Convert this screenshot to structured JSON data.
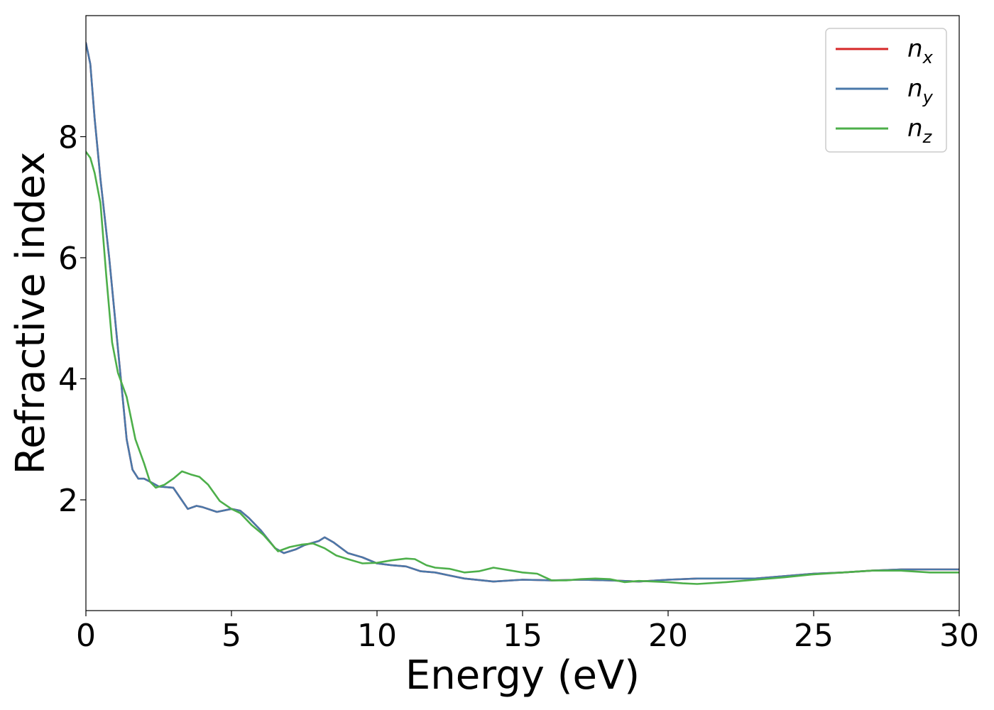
{
  "chart_data": {
    "type": "line",
    "title": "",
    "xlabel": "Energy (eV)",
    "ylabel": "Refractive index",
    "xlim": [
      0,
      30
    ],
    "ylim": [
      0.17,
      10.0
    ],
    "xticks": [
      0,
      5,
      10,
      15,
      20,
      25,
      30
    ],
    "yticks": [
      2,
      4,
      6,
      8
    ],
    "grid": false,
    "legend_position": "top-right",
    "series": [
      {
        "name": "n_x",
        "label_main": "n",
        "label_sub": "x",
        "color": "#d62728",
        "x": [
          0,
          0.15,
          0.3,
          0.5,
          0.8,
          1.0,
          1.2,
          1.4,
          1.6,
          1.8,
          2.0,
          2.2,
          2.5,
          3.0,
          3.5,
          3.8,
          4.0,
          4.5,
          5.0,
          5.3,
          5.6,
          6.0,
          6.5,
          6.8,
          7.2,
          7.5,
          8.0,
          8.2,
          8.5,
          9.0,
          9.5,
          10.0,
          10.5,
          11.0,
          11.5,
          12.0,
          12.5,
          13.0,
          14.0,
          15.0,
          16.0,
          17.0,
          18.0,
          19.0,
          20.0,
          21.0,
          22.0,
          23.0,
          24.0,
          25.0,
          26.0,
          27.0,
          28.0,
          29.0,
          30.0
        ],
        "y": [
          9.55,
          9.2,
          8.3,
          7.3,
          6.0,
          5.0,
          4.0,
          3.0,
          2.5,
          2.35,
          2.35,
          2.3,
          2.22,
          2.2,
          1.85,
          1.9,
          1.88,
          1.8,
          1.85,
          1.82,
          1.7,
          1.5,
          1.2,
          1.12,
          1.18,
          1.25,
          1.32,
          1.38,
          1.3,
          1.12,
          1.05,
          0.95,
          0.92,
          0.9,
          0.82,
          0.8,
          0.75,
          0.7,
          0.65,
          0.68,
          0.67,
          0.68,
          0.67,
          0.65,
          0.68,
          0.7,
          0.7,
          0.7,
          0.74,
          0.78,
          0.8,
          0.83,
          0.85,
          0.85,
          0.85
        ]
      },
      {
        "name": "n_y",
        "label_main": "n",
        "label_sub": "y",
        "color": "#4a78a9",
        "x": [
          0,
          0.15,
          0.3,
          0.5,
          0.8,
          1.0,
          1.2,
          1.4,
          1.6,
          1.8,
          2.0,
          2.2,
          2.5,
          3.0,
          3.5,
          3.8,
          4.0,
          4.5,
          5.0,
          5.3,
          5.6,
          6.0,
          6.5,
          6.8,
          7.2,
          7.5,
          8.0,
          8.2,
          8.5,
          9.0,
          9.5,
          10.0,
          10.5,
          11.0,
          11.5,
          12.0,
          12.5,
          13.0,
          14.0,
          15.0,
          16.0,
          17.0,
          18.0,
          19.0,
          20.0,
          21.0,
          22.0,
          23.0,
          24.0,
          25.0,
          26.0,
          27.0,
          28.0,
          29.0,
          30.0
        ],
        "y": [
          9.55,
          9.2,
          8.3,
          7.3,
          6.0,
          5.0,
          4.0,
          3.0,
          2.5,
          2.35,
          2.35,
          2.3,
          2.22,
          2.2,
          1.85,
          1.9,
          1.88,
          1.8,
          1.85,
          1.82,
          1.7,
          1.5,
          1.2,
          1.12,
          1.18,
          1.25,
          1.32,
          1.38,
          1.3,
          1.12,
          1.05,
          0.95,
          0.92,
          0.9,
          0.82,
          0.8,
          0.75,
          0.7,
          0.65,
          0.68,
          0.67,
          0.68,
          0.67,
          0.65,
          0.68,
          0.7,
          0.7,
          0.7,
          0.74,
          0.78,
          0.8,
          0.83,
          0.85,
          0.85,
          0.85
        ]
      },
      {
        "name": "n_z",
        "label_main": "n",
        "label_sub": "z",
        "color": "#4daf4a",
        "x": [
          0,
          0.15,
          0.3,
          0.5,
          0.7,
          0.9,
          1.1,
          1.4,
          1.7,
          2.0,
          2.2,
          2.4,
          2.7,
          3.0,
          3.3,
          3.6,
          3.9,
          4.2,
          4.6,
          5.0,
          5.3,
          5.7,
          6.1,
          6.6,
          7.0,
          7.4,
          7.8,
          8.2,
          8.6,
          9.0,
          9.5,
          10.0,
          10.5,
          11.0,
          11.3,
          11.7,
          12.0,
          12.5,
          13.0,
          13.5,
          14.0,
          14.5,
          15.0,
          15.5,
          16.0,
          16.5,
          17.0,
          17.5,
          18.0,
          18.5,
          19.0,
          19.5,
          20.0,
          20.5,
          21.0,
          22.0,
          23.0,
          24.0,
          25.0,
          26.0,
          27.0,
          28.0,
          29.0,
          30.0
        ],
        "y": [
          7.75,
          7.65,
          7.4,
          6.9,
          5.7,
          4.6,
          4.1,
          3.7,
          3.0,
          2.6,
          2.3,
          2.2,
          2.25,
          2.35,
          2.47,
          2.42,
          2.38,
          2.25,
          1.98,
          1.85,
          1.78,
          1.58,
          1.42,
          1.15,
          1.22,
          1.26,
          1.28,
          1.2,
          1.08,
          1.02,
          0.95,
          0.96,
          1.0,
          1.03,
          1.02,
          0.92,
          0.88,
          0.86,
          0.8,
          0.82,
          0.88,
          0.84,
          0.8,
          0.78,
          0.67,
          0.67,
          0.69,
          0.7,
          0.69,
          0.64,
          0.66,
          0.65,
          0.64,
          0.62,
          0.61,
          0.64,
          0.68,
          0.72,
          0.77,
          0.8,
          0.83,
          0.83,
          0.8,
          0.8
        ]
      }
    ]
  }
}
